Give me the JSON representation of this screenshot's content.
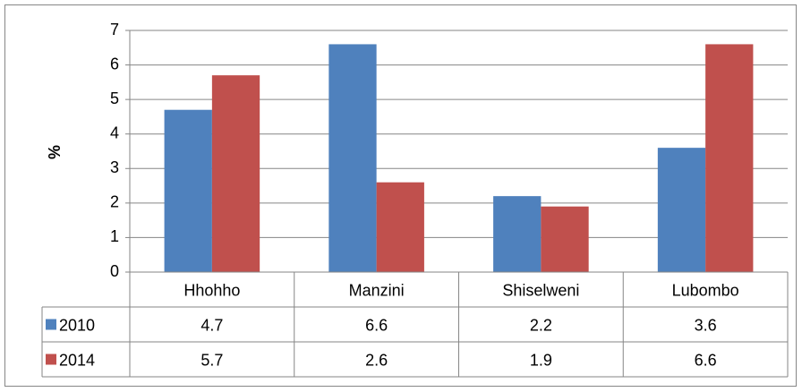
{
  "chart_data": {
    "type": "bar",
    "y_label": "%",
    "categories": [
      "Hhohho",
      "Manzini",
      "Shiselweni",
      "Lubombo"
    ],
    "series": [
      {
        "name": "2010",
        "color": "#4f81bd",
        "values": [
          4.7,
          6.6,
          2.2,
          3.6
        ]
      },
      {
        "name": "2014",
        "color": "#c0504d",
        "values": [
          5.7,
          2.6,
          1.9,
          6.6
        ]
      }
    ],
    "ylim": [
      0,
      7
    ],
    "yticks": [
      0,
      1,
      2,
      3,
      4,
      5,
      6,
      7
    ],
    "grid": true,
    "data_table": true
  }
}
